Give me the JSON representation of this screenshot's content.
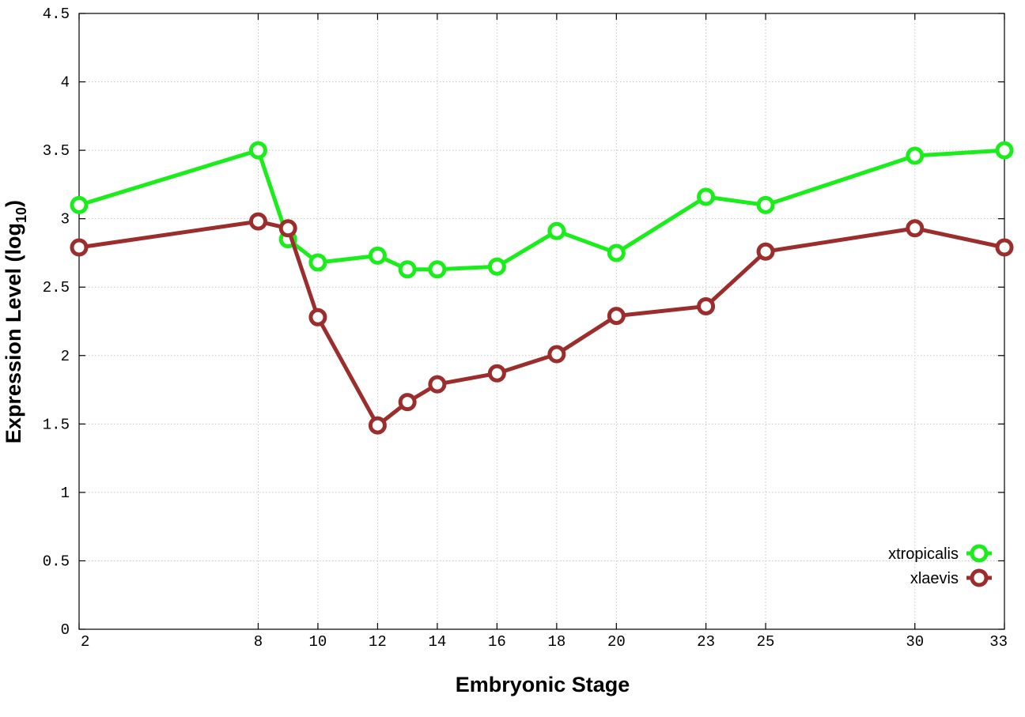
{
  "chart_data": {
    "type": "line",
    "xlabel": "Embryonic Stage",
    "ylabel": {
      "main": "Expression Level (log",
      "sub": "10",
      "end": ")"
    },
    "x": [
      2,
      8,
      9,
      10,
      12,
      13,
      14,
      16,
      18,
      20,
      23,
      25,
      30,
      33
    ],
    "xticks": [
      2,
      8,
      10,
      12,
      14,
      16,
      18,
      20,
      23,
      25,
      30,
      33
    ],
    "ylim": [
      0,
      4.5
    ],
    "yticks": [
      0,
      0.5,
      1,
      1.5,
      2,
      2.5,
      3,
      3.5,
      4,
      4.5
    ],
    "grid": true,
    "legend_position": "bottom-right",
    "series": [
      {
        "name": "xtropicalis",
        "color": "#1aee1a",
        "values": [
          3.1,
          3.5,
          2.85,
          2.68,
          2.73,
          2.63,
          2.63,
          2.65,
          2.91,
          2.75,
          3.16,
          3.1,
          3.46,
          3.5
        ]
      },
      {
        "name": "xlaevis",
        "color": "#9b2d2d",
        "values": [
          2.79,
          2.98,
          2.93,
          2.28,
          1.49,
          1.66,
          1.79,
          1.87,
          2.01,
          2.29,
          2.36,
          2.76,
          2.93,
          2.79
        ]
      }
    ]
  }
}
